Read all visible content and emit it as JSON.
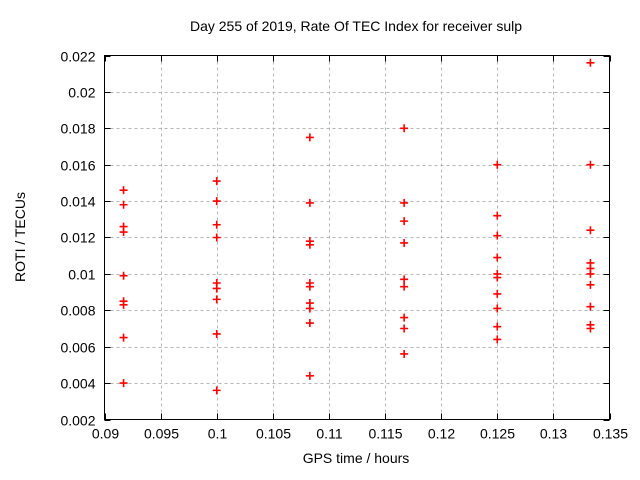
{
  "chart_data": {
    "type": "scatter",
    "title": "Day 255 of 2019, Rate Of TEC Index for receiver sulp",
    "xlabel": "GPS time / hours",
    "ylabel": "ROTI / TECUs",
    "xlim": [
      0.09,
      0.135
    ],
    "ylim": [
      0.002,
      0.022
    ],
    "grid": true,
    "legend_position": "none",
    "grid_color": "#b5b5b5",
    "axis_color": "#000000",
    "marker": {
      "shape": "plus",
      "color": "#ff0000"
    },
    "x_ticks": [
      {
        "value": 0.09,
        "label": "0.09"
      },
      {
        "value": 0.095,
        "label": "0.095"
      },
      {
        "value": 0.1,
        "label": "0.1"
      },
      {
        "value": 0.105,
        "label": "0.105"
      },
      {
        "value": 0.11,
        "label": "0.11"
      },
      {
        "value": 0.115,
        "label": "0.115"
      },
      {
        "value": 0.12,
        "label": "0.12"
      },
      {
        "value": 0.125,
        "label": "0.125"
      },
      {
        "value": 0.13,
        "label": "0.13"
      },
      {
        "value": 0.135,
        "label": "0.135"
      }
    ],
    "y_ticks": [
      {
        "value": 0.002,
        "label": "0.002"
      },
      {
        "value": 0.004,
        "label": "0.004"
      },
      {
        "value": 0.006,
        "label": "0.006"
      },
      {
        "value": 0.008,
        "label": "0.008"
      },
      {
        "value": 0.01,
        "label": "0.01"
      },
      {
        "value": 0.012,
        "label": "0.012"
      },
      {
        "value": 0.014,
        "label": "0.014"
      },
      {
        "value": 0.016,
        "label": "0.016"
      },
      {
        "value": 0.018,
        "label": "0.018"
      },
      {
        "value": 0.02,
        "label": "0.02"
      },
      {
        "value": 0.022,
        "label": "0.022"
      }
    ],
    "series": [
      {
        "name": "ROTI",
        "points": [
          [
            0.0917,
            0.0146
          ],
          [
            0.0917,
            0.0138
          ],
          [
            0.0917,
            0.0126
          ],
          [
            0.0917,
            0.0123
          ],
          [
            0.0917,
            0.0099
          ],
          [
            0.0917,
            0.0085
          ],
          [
            0.0917,
            0.0083
          ],
          [
            0.0917,
            0.0065
          ],
          [
            0.0917,
            0.004
          ],
          [
            0.1,
            0.0151
          ],
          [
            0.1,
            0.014
          ],
          [
            0.1,
            0.0127
          ],
          [
            0.1,
            0.012
          ],
          [
            0.1,
            0.0095
          ],
          [
            0.1,
            0.0092
          ],
          [
            0.1,
            0.0086
          ],
          [
            0.1,
            0.0067
          ],
          [
            0.1,
            0.0036
          ],
          [
            0.1083,
            0.0175
          ],
          [
            0.1083,
            0.0139
          ],
          [
            0.1083,
            0.0118
          ],
          [
            0.1083,
            0.0116
          ],
          [
            0.1083,
            0.0095
          ],
          [
            0.1083,
            0.0093
          ],
          [
            0.1083,
            0.0084
          ],
          [
            0.1083,
            0.0081
          ],
          [
            0.1083,
            0.0073
          ],
          [
            0.1083,
            0.0044
          ],
          [
            0.1167,
            0.018
          ],
          [
            0.1167,
            0.0139
          ],
          [
            0.1167,
            0.0129
          ],
          [
            0.1167,
            0.0117
          ],
          [
            0.1167,
            0.0097
          ],
          [
            0.1167,
            0.0093
          ],
          [
            0.1167,
            0.0076
          ],
          [
            0.1167,
            0.007
          ],
          [
            0.1167,
            0.0056
          ],
          [
            0.125,
            0.016
          ],
          [
            0.125,
            0.0132
          ],
          [
            0.125,
            0.0121
          ],
          [
            0.125,
            0.0109
          ],
          [
            0.125,
            0.01
          ],
          [
            0.125,
            0.0098
          ],
          [
            0.125,
            0.0089
          ],
          [
            0.125,
            0.0081
          ],
          [
            0.125,
            0.0071
          ],
          [
            0.125,
            0.0064
          ],
          [
            0.1333,
            0.0216
          ],
          [
            0.1333,
            0.016
          ],
          [
            0.1333,
            0.0124
          ],
          [
            0.1333,
            0.0106
          ],
          [
            0.1333,
            0.0103
          ],
          [
            0.1333,
            0.01
          ],
          [
            0.1333,
            0.0094
          ],
          [
            0.1333,
            0.0082
          ],
          [
            0.1333,
            0.0072
          ],
          [
            0.1333,
            0.007
          ]
        ]
      }
    ]
  }
}
